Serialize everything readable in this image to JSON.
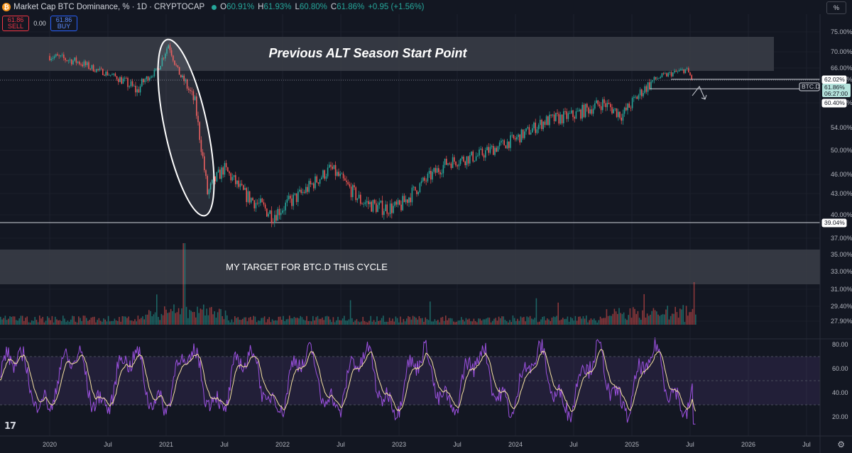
{
  "header": {
    "title": "Market Cap BTC Dominance, %",
    "interval": "1D",
    "exchange": "CRYPTOCAP",
    "separator": "·",
    "ohlc": [
      {
        "k": "O",
        "v": "60.91%"
      },
      {
        "k": "H",
        "v": "61.93%"
      },
      {
        "k": "L",
        "v": "60.80%"
      },
      {
        "k": "C",
        "v": "61.86%"
      }
    ],
    "change": "+0.95 (+1.56%)",
    "coin_icon": "bitcoin-icon"
  },
  "trade": {
    "sell_price": "61.86",
    "sell_label": "SELL",
    "spread": "0.00",
    "buy_price": "61.86",
    "buy_label": "BUY"
  },
  "scale_toggle": "%",
  "annotations": {
    "top_zone": "Previous ALT Season Start Point",
    "bottom_zone": "MY TARGET FOR BTC.D THIS CYCLE"
  },
  "price_tags": {
    "symbol": "BTC.D",
    "current": "61.86%",
    "countdown": "06:27:00",
    "upper": "62.02%",
    "lower": "60.40%",
    "support": "39.04%"
  },
  "colors": {
    "background": "#131722",
    "up": "#26a69a",
    "down": "#ef5350",
    "rsi": "#9c51e0",
    "rsi_ma": "#f7e3a3",
    "zone": "#3a3d47"
  },
  "chart_data": [
    {
      "type": "candlestick",
      "title": "Market Cap BTC Dominance, %",
      "x": [
        "2020-01-01",
        "2020-04-01",
        "2020-07-01",
        "2020-10-01",
        "2020-12-01",
        "2021-01-08",
        "2021-02-15",
        "2021-04-01",
        "2021-05-10",
        "2021-06-01",
        "2021-07-01",
        "2021-09-01",
        "2021-12-01",
        "2022-03-01",
        "2022-06-01",
        "2022-09-01",
        "2022-11-01",
        "2023-01-01",
        "2023-03-01",
        "2023-06-01",
        "2023-09-01",
        "2024-01-01",
        "2024-04-01",
        "2024-07-01",
        "2024-10-01",
        "2024-12-01",
        "2025-02-01",
        "2025-04-01",
        "2025-06-20",
        "2025-07-10"
      ],
      "close": [
        69,
        67.5,
        64,
        60,
        65,
        72,
        63,
        58,
        43,
        45,
        47,
        43,
        40,
        43,
        47,
        42,
        41,
        41,
        44,
        48,
        49,
        52,
        55,
        56,
        58,
        56,
        60,
        63,
        65.5,
        61.86
      ],
      "y_ticks": [
        "75.00%",
        "70.00%",
        "66.00%",
        "62.00%",
        "58.00%",
        "54.00%",
        "50.00%",
        "46.00%",
        "43.00%",
        "40.00%",
        "37.00%",
        "35.00%",
        "33.00%",
        "31.00%",
        "29.40%",
        "27.90%"
      ],
      "x_ticks": [
        "2020",
        "Jul",
        "2021",
        "Jul",
        "2022",
        "Jul",
        "2023",
        "Jul",
        "2024",
        "Jul",
        "2025",
        "Jul",
        "2026",
        "Jul"
      ],
      "horizontal_levels": [
        39.04
      ],
      "zones": [
        {
          "label": "Previous ALT Season Start Point",
          "from": 66,
          "to": 74
        },
        {
          "label": "MY TARGET FOR BTC.D THIS CYCLE",
          "from": 31,
          "to": 36
        }
      ]
    },
    {
      "type": "line",
      "title": "RSI",
      "y_ticks": [
        "80.00",
        "60.00",
        "40.00",
        "20.00"
      ],
      "ylim": [
        10,
        90
      ],
      "bands": [
        30,
        70
      ],
      "last_value": 14
    }
  ]
}
